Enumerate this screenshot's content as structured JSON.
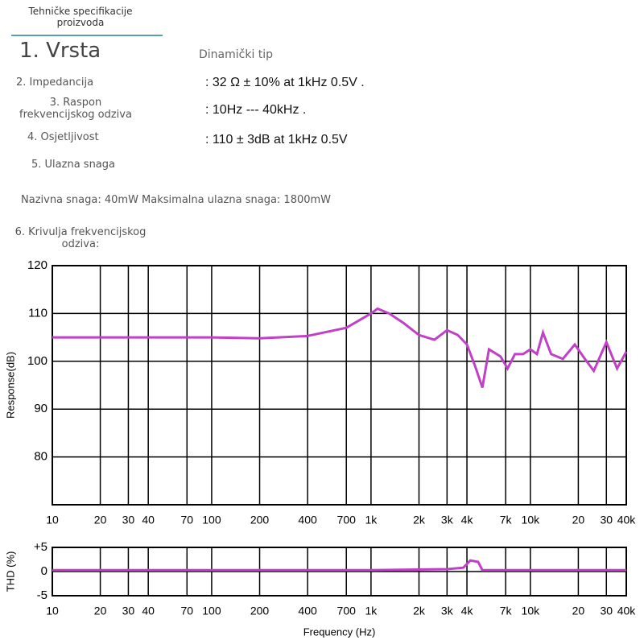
{
  "header": {
    "tab": "Tehničke specifikacije proizvoda"
  },
  "specs": [
    {
      "label": "1. Vrsta",
      "value": "Dinamički tip"
    },
    {
      "label": "2. Impedancija",
      "value": ":   32 Ω ± 10% at 1kHz 0.5V ."
    },
    {
      "label": "3. Raspon frekvencijskog odziva",
      "value": ":   10Hz --- 40kHz ."
    },
    {
      "label": "4. Osjetljivost",
      "value": ":   110 ± 3dB at 1kHz 0.5V"
    },
    {
      "label": "5. Ulazna snaga"
    }
  ],
  "power_note": "Nazivna snaga: 40mW Maksimalna ulazna snaga: 1800mW",
  "curve_heading": "6. Krivulja frekvencijskog odziva:",
  "chart_data": [
    {
      "type": "line",
      "y_label": "Response(dB)",
      "xscale": "log",
      "grid": true,
      "xlim": [
        10,
        40000
      ],
      "ylim": [
        70,
        120
      ],
      "xticks": [
        10,
        20,
        30,
        40,
        70,
        100,
        200,
        400,
        700,
        {
          "value": 1000,
          "label": "1k"
        },
        {
          "value": 2000,
          "label": "2k"
        },
        {
          "value": 3000,
          "label": "3k"
        },
        {
          "value": 4000,
          "label": "4k"
        },
        {
          "value": 7000,
          "label": "7k"
        },
        {
          "value": 10000,
          "label": "10k"
        },
        {
          "value": 20000,
          "label": "20"
        },
        {
          "value": 30000,
          "label": "30"
        },
        {
          "value": 40000,
          "label": "40k"
        }
      ],
      "yticks": [
        80,
        90,
        100,
        110,
        120
      ],
      "x": [
        10,
        20,
        50,
        100,
        200,
        400,
        700,
        1000,
        1100,
        1300,
        1600,
        2000,
        2500,
        3000,
        3500,
        4000,
        4500,
        5000,
        5500,
        6500,
        7200,
        8000,
        9000,
        10000,
        11000,
        12000,
        13500,
        16000,
        19000,
        22000,
        25000,
        30000,
        35000,
        40000
      ],
      "series": [
        {
          "color": "#c040c8",
          "values": [
            105,
            105,
            105,
            105,
            104.8,
            105.3,
            107,
            110,
            111,
            110,
            108,
            105.5,
            104.5,
            106.5,
            105.5,
            103.5,
            99,
            94.5,
            102.5,
            101,
            98.5,
            101.5,
            101.5,
            102.5,
            101.5,
            106,
            101.5,
            100.5,
            103.5,
            100.5,
            98,
            104,
            98.5,
            102
          ]
        }
      ]
    },
    {
      "type": "line",
      "y_label": "THD (%)",
      "x_label": "Frequency (Hz)",
      "xscale": "log",
      "grid": true,
      "xlim": [
        10,
        40000
      ],
      "ylim": [
        -5,
        5
      ],
      "xticks": [
        10,
        20,
        30,
        40,
        70,
        100,
        200,
        400,
        700,
        {
          "value": 1000,
          "label": "1k"
        },
        {
          "value": 2000,
          "label": "2k"
        },
        {
          "value": 3000,
          "label": "3k"
        },
        {
          "value": 4000,
          "label": "4k"
        },
        {
          "value": 7000,
          "label": "7k"
        },
        {
          "value": 10000,
          "label": "10k"
        },
        {
          "value": 20000,
          "label": "20"
        },
        {
          "value": 30000,
          "label": "30"
        },
        {
          "value": 40000,
          "label": "40k"
        }
      ],
      "yticks": [
        {
          "value": 5,
          "label": "+5"
        },
        0,
        -5
      ],
      "x": [
        10,
        1000,
        3000,
        3800,
        4200,
        4700,
        5000,
        40000
      ],
      "series": [
        {
          "color": "#c040c8",
          "values": [
            0.3,
            0.3,
            0.5,
            0.8,
            2.3,
            2.0,
            0.3,
            0.3
          ]
        }
      ]
    }
  ]
}
